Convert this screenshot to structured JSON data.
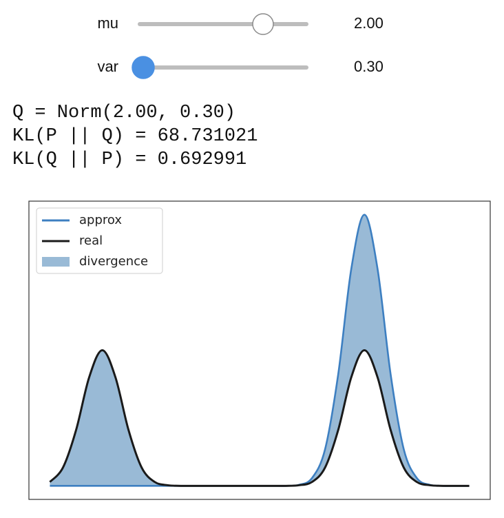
{
  "sliders": [
    {
      "label": "mu",
      "value": 2,
      "value_label": "2.00",
      "min": -4,
      "max": 4,
      "focused": false
    },
    {
      "label": "var",
      "value": 0.3,
      "value_label": "0.30",
      "min": 0.3,
      "max": 3,
      "focused": true
    }
  ],
  "output": [
    "Q = Norm(2.00, 0.30)",
    "KL(P || Q) = 68.731021",
    "KL(Q || P) = 0.692991"
  ],
  "chart_data": {
    "type": "line",
    "x": [
      -2.8,
      -2.6,
      -2.4,
      -2.2,
      -2.0,
      -1.8,
      -1.6,
      -1.4,
      -1.2,
      -1.0,
      -0.8,
      -0.6,
      -0.4,
      -0.2,
      0,
      0.2,
      0.4,
      0.6,
      0.8,
      1.0,
      1.2,
      1.4,
      1.6,
      1.8,
      2.0,
      2.2,
      2.4,
      2.6,
      2.8,
      3.0,
      3.2,
      3.4,
      3.6
    ],
    "series": [
      {
        "name": "approx",
        "color": "#3d7fc1",
        "values": [
          0,
          0,
          0,
          0,
          0,
          0,
          0,
          0,
          0,
          0,
          0,
          0,
          0,
          0,
          0,
          0,
          0,
          0,
          0,
          0.005,
          0.038,
          0.18,
          0.547,
          1.065,
          1.33,
          1.065,
          0.547,
          0.18,
          0.038,
          0.005,
          0,
          0,
          0
        ]
      },
      {
        "name": "real",
        "color": "#1a1a1a",
        "values": [
          0.019,
          0.09,
          0.274,
          0.533,
          0.665,
          0.533,
          0.274,
          0.09,
          0.019,
          0.003,
          0,
          0,
          0,
          0,
          0,
          0,
          0,
          0,
          0,
          0.003,
          0.019,
          0.09,
          0.274,
          0.533,
          0.665,
          0.533,
          0.274,
          0.09,
          0.019,
          0.003,
          0,
          0,
          0
        ]
      }
    ],
    "fill": {
      "name": "divergence",
      "color": "#4682b4",
      "opacity": 0.55
    },
    "xlim": [
      -3.12,
      3.92
    ],
    "ylim": [
      -0.0665,
      1.3965
    ],
    "legend": "upper left"
  }
}
